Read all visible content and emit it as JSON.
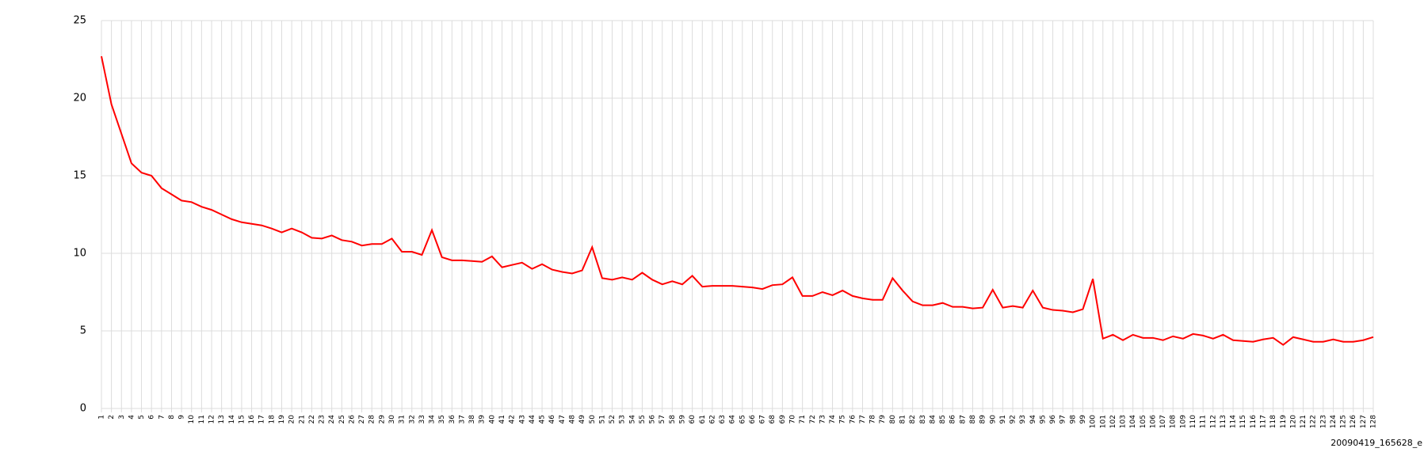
{
  "chart_data": {
    "type": "line",
    "categories": [
      "1",
      "2",
      "3",
      "4",
      "5",
      "6",
      "7",
      "8",
      "9",
      "10",
      "11",
      "12",
      "13",
      "14",
      "15",
      "16",
      "17",
      "18",
      "19",
      "20",
      "21",
      "22",
      "23",
      "24",
      "25",
      "26",
      "27",
      "28",
      "29",
      "30",
      "31",
      "32",
      "33",
      "34",
      "35",
      "36",
      "37",
      "38",
      "39",
      "40",
      "41",
      "42",
      "43",
      "44",
      "45",
      "46",
      "47",
      "48",
      "49",
      "50",
      "51",
      "52",
      "53",
      "54",
      "55",
      "56",
      "57",
      "58",
      "59",
      "60",
      "61",
      "62",
      "63",
      "64",
      "65",
      "66",
      "67",
      "68",
      "69",
      "70",
      "71",
      "72",
      "73",
      "74",
      "75",
      "76",
      "77",
      "78",
      "79",
      "80",
      "81",
      "82",
      "83",
      "84",
      "85",
      "86",
      "87",
      "88",
      "89",
      "90",
      "91",
      "92",
      "93",
      "94",
      "95",
      "96",
      "97",
      "98",
      "99",
      "100",
      "101",
      "102",
      "103",
      "104",
      "105",
      "106",
      "107",
      "108",
      "109",
      "110",
      "111",
      "112",
      "113",
      "114",
      "115",
      "116",
      "117",
      "118",
      "119",
      "120",
      "121",
      "122",
      "123",
      "124",
      "125",
      "126",
      "127",
      "128"
    ],
    "values": [
      22.7,
      19.6,
      17.7,
      15.8,
      15.2,
      15.0,
      14.2,
      13.8,
      13.4,
      13.3,
      13.0,
      12.8,
      12.5,
      12.2,
      12.0,
      11.9,
      11.8,
      11.6,
      11.35,
      11.6,
      11.35,
      11.0,
      10.95,
      11.15,
      10.85,
      10.75,
      10.5,
      10.6,
      10.6,
      10.95,
      10.1,
      10.1,
      9.9,
      11.5,
      9.75,
      9.55,
      9.55,
      9.5,
      9.45,
      9.8,
      9.1,
      9.25,
      9.4,
      9.0,
      9.3,
      8.95,
      8.8,
      8.7,
      8.9,
      10.4,
      8.4,
      8.3,
      8.45,
      8.3,
      8.75,
      8.3,
      8.0,
      8.2,
      8.0,
      8.55,
      7.85,
      7.9,
      7.9,
      7.9,
      7.85,
      7.8,
      7.7,
      7.95,
      8.0,
      8.45,
      7.25,
      7.25,
      7.5,
      7.3,
      7.6,
      7.25,
      7.1,
      7.0,
      7.0,
      8.4,
      7.6,
      6.9,
      6.65,
      6.65,
      6.8,
      6.55,
      6.55,
      6.45,
      6.5,
      7.65,
      6.5,
      6.6,
      6.5,
      7.6,
      6.5,
      6.35,
      6.3,
      6.2,
      6.4,
      8.35,
      4.5,
      4.75,
      4.4,
      4.75,
      4.55,
      4.55,
      4.4,
      4.65,
      4.5,
      4.8,
      4.7,
      4.5,
      4.75,
      4.4,
      4.35,
      4.3,
      4.45,
      4.55,
      4.1,
      4.6,
      4.45,
      4.3,
      4.3,
      4.45,
      4.3,
      4.3,
      4.4,
      4.6
    ],
    "color": "#ff0000",
    "ylim": [
      0,
      25
    ],
    "yticks": [
      0,
      5,
      10,
      15,
      20,
      25
    ],
    "grid": true,
    "footer": "20090419_165628_e"
  }
}
